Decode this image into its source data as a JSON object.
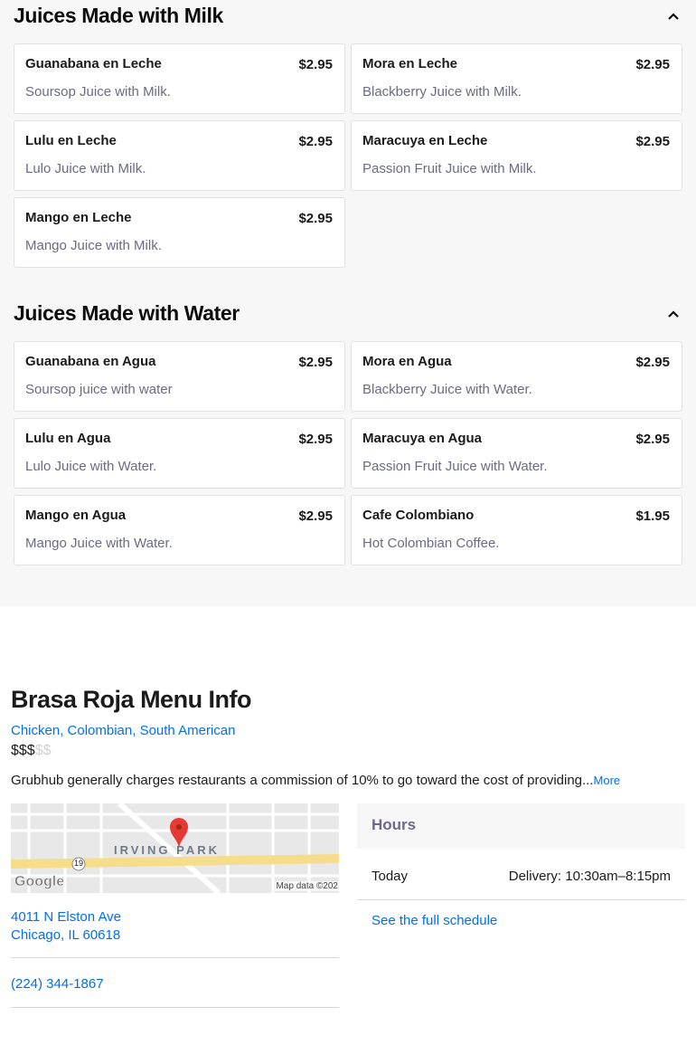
{
  "sections": [
    {
      "title": "Juices Made with Milk",
      "items": [
        {
          "name": "Guanabana en Leche",
          "price": "$2.95",
          "desc": "Soursop Juice with Milk."
        },
        {
          "name": "Mora en Leche",
          "price": "$2.95",
          "desc": "Blackberry Juice with Milk."
        },
        {
          "name": "Lulu en Leche",
          "price": "$2.95",
          "desc": "Lulo Juice with Milk."
        },
        {
          "name": "Maracuya en Leche",
          "price": "$2.95",
          "desc": "Passion Fruit Juice with Milk."
        },
        {
          "name": "Mango en Leche",
          "price": "$2.95",
          "desc": "Mango Juice with Milk."
        }
      ]
    },
    {
      "title": "Juices Made with Water",
      "items": [
        {
          "name": "Guanabana en Agua",
          "price": "$2.95",
          "desc": "Soursop juice with water"
        },
        {
          "name": "Mora en Agua",
          "price": "$2.95",
          "desc": "Blackberry Juice with Water."
        },
        {
          "name": "Lulu en Agua",
          "price": "$2.95",
          "desc": "Lulo Juice with Water."
        },
        {
          "name": "Maracuya en Agua",
          "price": "$2.95",
          "desc": "Passion Fruit Juice with Water."
        },
        {
          "name": "Mango en Agua",
          "price": "$2.95",
          "desc": "Mango Juice with Water."
        },
        {
          "name": "Cafe Colombiano",
          "price": "$1.95",
          "desc": "Hot Colombian Coffee."
        }
      ]
    }
  ],
  "info": {
    "title": "Brasa Roja Menu Info",
    "categories": "Chicken, Colombian, South American",
    "price_active": "$$$",
    "price_inactive": "$$",
    "description": "Grubhub generally charges restaurants a commission of 10% to go toward the cost of providing...",
    "more": "More",
    "map": {
      "label": "IRVING PARK",
      "route": "19",
      "credit": "Map data ©202",
      "logo": "Google"
    },
    "address_line1": "4011 N Elston Ave",
    "address_line2": "Chicago, IL 60618",
    "phone": "(224) 344-1867",
    "hours": {
      "title": "Hours",
      "day": "Today",
      "value": "Delivery: 10:30am–8:15pm",
      "full_schedule": "See the full schedule"
    }
  },
  "colors": {
    "link": "#0070eb",
    "pin": "#e53935"
  }
}
